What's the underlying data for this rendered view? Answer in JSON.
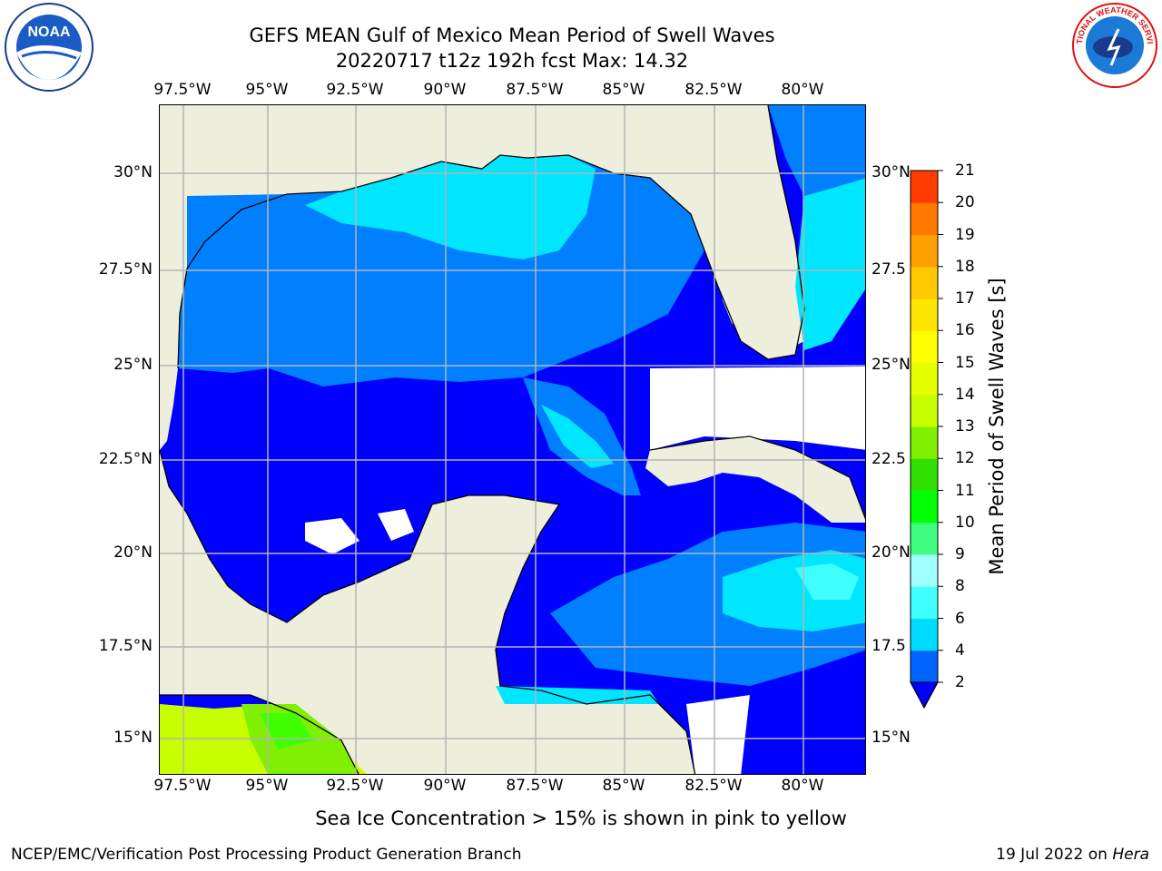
{
  "header": {
    "title": "GEFS MEAN Gulf of Mexico Mean Period of Swell Waves",
    "subtitle": "20220717 t12z 192h fcst   Max: 14.32"
  },
  "logos": {
    "left": "noaa-logo",
    "right": "national-weather-service-logo",
    "left_text": "NOAA",
    "right_text": "NATIONAL WEATHER SERVICE"
  },
  "map": {
    "lon_labels": [
      "97.5°W",
      "95°W",
      "92.5°W",
      "90°W",
      "87.5°W",
      "85°W",
      "82.5°W",
      "80°W"
    ],
    "lat_labels_left": [
      "30°N",
      "27.5°N",
      "25°N",
      "22.5°N",
      "20°N",
      "17.5°N",
      "15°N"
    ],
    "lat_labels_right": [
      "30°N",
      "27.5",
      "25°N",
      "22.5",
      "20°N",
      "17.5",
      "15°N"
    ],
    "colors": {
      "land": "#eeeedc",
      "ocean_low": "#0000ff",
      "ocean_2_4": "#0080ff",
      "ocean_4_6": "#00e6ff",
      "ocean_6_8": "#40ffff",
      "no_data": "#ffffff",
      "grid": "#b4b4b4",
      "coast": "#000000"
    }
  },
  "colorbar": {
    "title": "Mean Period of Swell Waves [s]",
    "ticks": [
      "2",
      "4",
      "6",
      "8",
      "9",
      "10",
      "11",
      "12",
      "13",
      "14",
      "15",
      "16",
      "17",
      "18",
      "19",
      "20",
      "21"
    ],
    "colors": [
      "#0064ff",
      "#00dcff",
      "#40ffff",
      "#a0ffff",
      "#40ff80",
      "#00ff00",
      "#30e000",
      "#80f000",
      "#c8ff00",
      "#e6ff00",
      "#ffff00",
      "#ffe600",
      "#ffc800",
      "#ffa000",
      "#ff7800",
      "#ff3c00"
    ],
    "extend_color": "#0000ff"
  },
  "footer": {
    "note": "Sea Ice Concentration > 15% is shown in pink to yellow",
    "producer": "NCEP/EMC/Verification Post Processing Product Generation Branch",
    "date": "19 Jul 2022 on ",
    "machine": "Hera"
  }
}
